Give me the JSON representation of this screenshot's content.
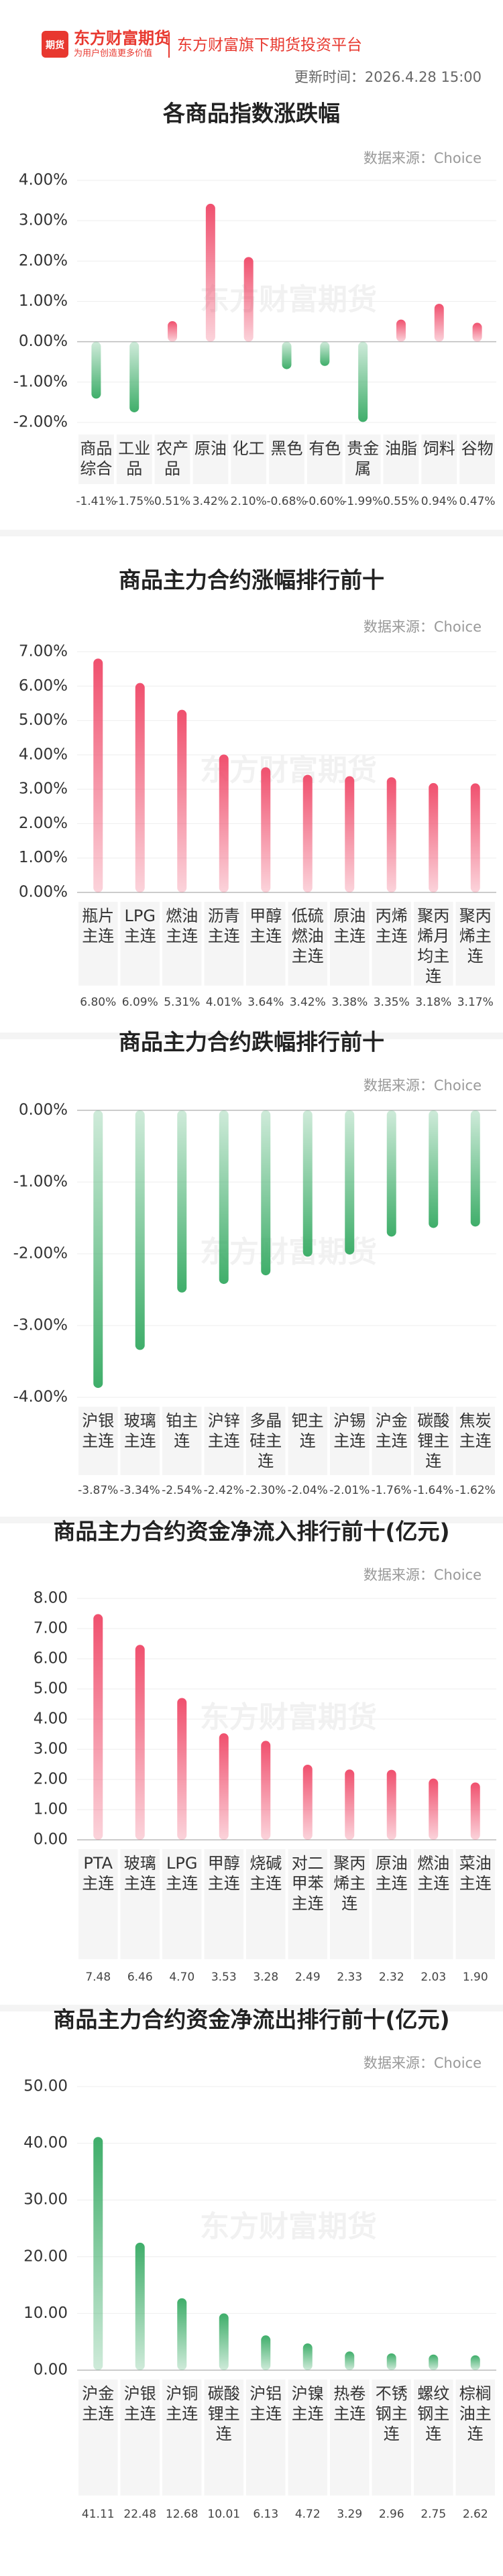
{
  "header": {
    "logo_icon": "期货",
    "brand": "东方财富期货",
    "slogan": "为用户创造更多价值",
    "platform": "东方财富旗下期货投资平台",
    "update_time": "更新时间：2026.4.28 15:00"
  },
  "watermark": "东方财富期货",
  "chart_data": [
    {
      "type": "bar",
      "title": "各商品指数涨跌幅",
      "source": "数据来源：Choice",
      "categories": [
        "商品综合",
        "工业品",
        "农产品",
        "原油",
        "化工",
        "黑色",
        "有色",
        "贵金属",
        "油脂",
        "饲料",
        "谷物"
      ],
      "values": [
        -1.41,
        -1.75,
        0.51,
        3.42,
        2.1,
        -0.68,
        -0.6,
        -1.99,
        0.55,
        0.94,
        0.47
      ],
      "value_labels": [
        "-1.41%",
        "-1.75%",
        "0.51%",
        "3.42%",
        "2.10%",
        "-0.68%",
        "-0.60%",
        "-1.99%",
        "0.55%",
        "0.94%",
        "0.47%"
      ],
      "color": "#f0506e",
      "negative_color": "#3fae6a",
      "ylim": [
        -2,
        4
      ],
      "yticks": [
        {
          "value": -2,
          "label": "-2.00%"
        },
        {
          "value": -1,
          "label": "-1.00%"
        },
        {
          "value": 0,
          "label": "0.00%"
        },
        {
          "value": 1,
          "label": "1.00%"
        },
        {
          "value": 2,
          "label": "2.00%"
        },
        {
          "value": 3,
          "label": "3.00%"
        },
        {
          "value": 4,
          "label": "4.00%"
        }
      ],
      "grid": true
    },
    {
      "type": "bar",
      "title": "商品主力合约涨幅排行前十",
      "source": "数据来源：Choice",
      "categories": [
        "瓶片主连",
        "LPG主连",
        "燃油主连",
        "沥青主连",
        "甲醇主连",
        "低硫燃油主连",
        "原油主连",
        "丙烯主连",
        "聚丙烯月均主连",
        "聚丙烯主连"
      ],
      "values": [
        6.8,
        6.09,
        5.31,
        4.01,
        3.64,
        3.42,
        3.38,
        3.35,
        3.18,
        3.17
      ],
      "value_labels": [
        "6.80%",
        "6.09%",
        "5.31%",
        "4.01%",
        "3.64%",
        "3.42%",
        "3.38%",
        "3.35%",
        "3.18%",
        "3.17%"
      ],
      "color": "#f0506e",
      "negative_color": "#3fae6a",
      "ylim": [
        0,
        7
      ],
      "yticks": [
        {
          "value": 0,
          "label": "0.00%"
        },
        {
          "value": 1,
          "label": "1.00%"
        },
        {
          "value": 2,
          "label": "2.00%"
        },
        {
          "value": 3,
          "label": "3.00%"
        },
        {
          "value": 4,
          "label": "4.00%"
        },
        {
          "value": 5,
          "label": "5.00%"
        },
        {
          "value": 6,
          "label": "6.00%"
        },
        {
          "value": 7,
          "label": "7.00%"
        }
      ],
      "grid": true
    },
    {
      "type": "bar",
      "title": "商品主力合约跌幅排行前十",
      "source": "数据来源：Choice",
      "categories": [
        "沪银主连",
        "玻璃主连",
        "铂主连",
        "沪锌主连",
        "多晶硅主连",
        "钯主连",
        "沪锡主连",
        "沪金主连",
        "碳酸锂主连",
        "焦炭主连"
      ],
      "values": [
        -3.87,
        -3.34,
        -2.54,
        -2.42,
        -2.3,
        -2.04,
        -2.01,
        -1.76,
        -1.64,
        -1.62
      ],
      "value_labels": [
        "-3.87%",
        "-3.34%",
        "-2.54%",
        "-2.42%",
        "-2.30%",
        "-2.04%",
        "-2.01%",
        "-1.76%",
        "-1.64%",
        "-1.62%"
      ],
      "color": "#f0506e",
      "negative_color": "#3fae6a",
      "ylim": [
        -4,
        0
      ],
      "yticks": [
        {
          "value": -4,
          "label": "-4.00%"
        },
        {
          "value": -3,
          "label": "-3.00%"
        },
        {
          "value": -2,
          "label": "-2.00%"
        },
        {
          "value": -1,
          "label": "-1.00%"
        },
        {
          "value": 0,
          "label": "0.00%"
        }
      ],
      "grid": true
    },
    {
      "type": "bar",
      "title": "商品主力合约资金净流入排行前十(亿元)",
      "source": "数据来源：Choice",
      "categories": [
        "PTA主连",
        "玻璃主连",
        "LPG主连",
        "甲醇主连",
        "烧碱主连",
        "对二甲苯主连",
        "聚丙烯主连",
        "原油主连",
        "燃油主连",
        "菜油主连"
      ],
      "values": [
        7.48,
        6.46,
        4.7,
        3.53,
        3.28,
        2.49,
        2.33,
        2.32,
        2.03,
        1.9
      ],
      "value_labels": [
        "7.48",
        "6.46",
        "4.70",
        "3.53",
        "3.28",
        "2.49",
        "2.33",
        "2.32",
        "2.03",
        "1.90"
      ],
      "color": "#f0506e",
      "negative_color": "#3fae6a",
      "ylim": [
        0,
        8
      ],
      "yticks": [
        {
          "value": 0,
          "label": "0.00"
        },
        {
          "value": 1,
          "label": "1.00"
        },
        {
          "value": 2,
          "label": "2.00"
        },
        {
          "value": 3,
          "label": "3.00"
        },
        {
          "value": 4,
          "label": "4.00"
        },
        {
          "value": 5,
          "label": "5.00"
        },
        {
          "value": 6,
          "label": "6.00"
        },
        {
          "value": 7,
          "label": "7.00"
        },
        {
          "value": 8,
          "label": "8.00"
        }
      ],
      "grid": true
    },
    {
      "type": "bar",
      "title": "商品主力合约资金净流出排行前十(亿元)",
      "source": "数据来源：Choice",
      "categories": [
        "沪金主连",
        "沪银主连",
        "沪铜主连",
        "碳酸锂主连",
        "沪铝主连",
        "沪镍主连",
        "热卷主连",
        "不锈钢主连",
        "螺纹钢主连",
        "棕榈油主连"
      ],
      "values": [
        41.11,
        22.48,
        12.68,
        10.01,
        6.13,
        4.72,
        3.29,
        2.96,
        2.75,
        2.62
      ],
      "value_labels": [
        "41.11",
        "22.48",
        "12.68",
        "10.01",
        "6.13",
        "4.72",
        "3.29",
        "2.96",
        "2.75",
        "2.62"
      ],
      "color": "#3fae6a",
      "negative_color": "#3fae6a",
      "ylim": [
        0,
        50
      ],
      "yticks": [
        {
          "value": 0,
          "label": "0.00"
        },
        {
          "value": 10,
          "label": "10.00"
        },
        {
          "value": 20,
          "label": "20.00"
        },
        {
          "value": 30,
          "label": "30.00"
        },
        {
          "value": 40,
          "label": "40.00"
        },
        {
          "value": 50,
          "label": "50.00"
        }
      ],
      "grid": true
    }
  ]
}
